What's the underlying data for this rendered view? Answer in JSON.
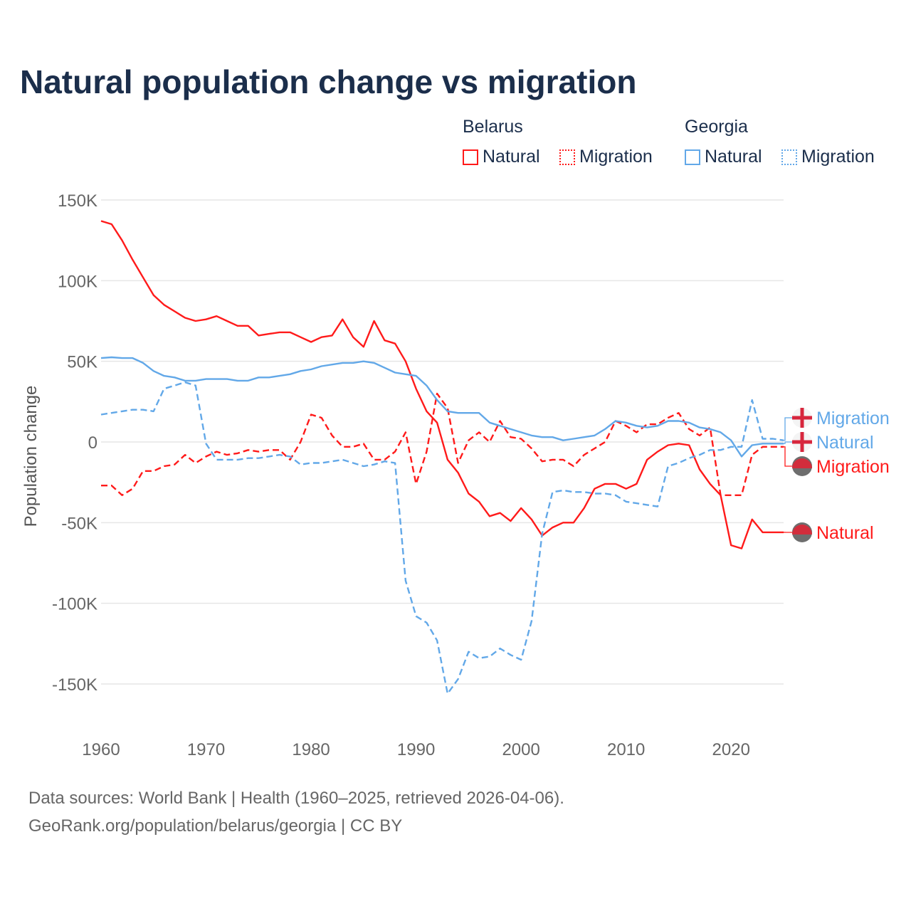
{
  "title": "Natural population change vs migration",
  "legend": {
    "groups": [
      {
        "name": "Belarus",
        "items": [
          "Natural",
          "Migration"
        ]
      },
      {
        "name": "Georgia",
        "items": [
          "Natural",
          "Migration"
        ]
      }
    ]
  },
  "footer": {
    "line1": "Data sources: World Bank | Health (1960–2025, retrieved 2026-04-06).",
    "line2": "GeoRank.org/population/belarus/georgia | CC BY"
  },
  "colors": {
    "belarus": "#ff1a1a",
    "georgia": "#62a8e8"
  },
  "chart_data": {
    "type": "line",
    "title": "Natural population change vs migration",
    "xlabel": "",
    "ylabel": "Population change",
    "xlim": [
      1960,
      2025
    ],
    "ylim": [
      -170000,
      150000
    ],
    "xticks": [
      1960,
      1970,
      1980,
      1990,
      2000,
      2010,
      2020
    ],
    "xtick_labels": [
      "1960",
      "1970",
      "1980",
      "1990",
      "2000",
      "2010",
      "2020"
    ],
    "yticks": [
      150000,
      100000,
      50000,
      0,
      -50000,
      -100000,
      -150000
    ],
    "ytick_labels": [
      "150K",
      "100K",
      "50K",
      "0",
      "-50K",
      "-100K",
      "-150K"
    ],
    "grid": true,
    "legend_position": "top-right",
    "x_start": 1960,
    "series": [
      {
        "name": "Belarus Natural",
        "label": "Natural",
        "country": "belarus",
        "dash": false,
        "values_k": [
          137,
          135,
          125,
          113,
          102,
          91,
          85,
          81,
          77,
          75,
          76,
          78,
          75,
          72,
          72,
          66,
          67,
          68,
          68,
          65,
          62,
          65,
          66,
          76,
          65,
          59,
          75,
          63,
          61,
          50,
          33,
          19,
          12,
          -11,
          -19,
          -32,
          -37,
          -46,
          -44,
          -49,
          -41,
          -48,
          -58,
          -53,
          -50,
          -50,
          -41,
          -29,
          -26,
          -26,
          -29,
          -26,
          -11,
          -6,
          -2,
          -1,
          -2,
          -17,
          -26,
          -33,
          -64,
          -66,
          -48,
          -56,
          -56,
          -56
        ]
      },
      {
        "name": "Belarus Migration",
        "label": "Migration",
        "country": "belarus",
        "dash": true,
        "values_k": [
          -27,
          -27,
          -33,
          -29,
          -18,
          -18,
          -15,
          -14,
          -8,
          -13,
          -9,
          -6,
          -8,
          -7,
          -5,
          -6,
          -5,
          -5,
          -11,
          0,
          17,
          15,
          4,
          -3,
          -3,
          -1,
          -11,
          -11,
          -6,
          6,
          -26,
          -6,
          30,
          21,
          -13,
          1,
          6,
          0,
          13,
          3,
          2,
          -4,
          -12,
          -11,
          -11,
          -15,
          -8,
          -4,
          0,
          13,
          10,
          6,
          11,
          11,
          15,
          18,
          8,
          4,
          9,
          -33,
          -33,
          -33,
          -8,
          -3,
          -3,
          -3
        ]
      },
      {
        "name": "Georgia Natural",
        "label": "Natural",
        "country": "georgia",
        "dash": false,
        "values_k": [
          52,
          52.5,
          52,
          52,
          49,
          44,
          41,
          40,
          38,
          38,
          39,
          39,
          39,
          38,
          38,
          40,
          40,
          41,
          42,
          44,
          45,
          47,
          48,
          49,
          49,
          50,
          49,
          46,
          43,
          42,
          41,
          35,
          26,
          19,
          18,
          18,
          18,
          12,
          10,
          8,
          6,
          4,
          3,
          3,
          1,
          2,
          3,
          4,
          8,
          13,
          12,
          10,
          9,
          10,
          13,
          13,
          12,
          9,
          8,
          6,
          1,
          -9,
          -2,
          -1,
          -1,
          -1
        ]
      },
      {
        "name": "Georgia Migration",
        "label": "Migration",
        "country": "georgia",
        "dash": true,
        "values_k": [
          17,
          18,
          19,
          20,
          20,
          19,
          33,
          35,
          37,
          35,
          -1,
          -11,
          -11,
          -11,
          -10,
          -10,
          -9,
          -8,
          -9,
          -14,
          -13,
          -13,
          -12,
          -11,
          -13,
          -15,
          -14,
          -12,
          -13,
          -86,
          -108,
          -112,
          -123,
          -156,
          -147,
          -130,
          -134,
          -133,
          -128,
          -132,
          -135,
          -111,
          -57,
          -31,
          -30,
          -31,
          -31,
          -32,
          -32,
          -33,
          -37,
          -38,
          -39,
          -40,
          -15,
          -13,
          -10,
          -8,
          -5,
          -5,
          -3,
          -3,
          26,
          2,
          2,
          1
        ]
      }
    ]
  }
}
